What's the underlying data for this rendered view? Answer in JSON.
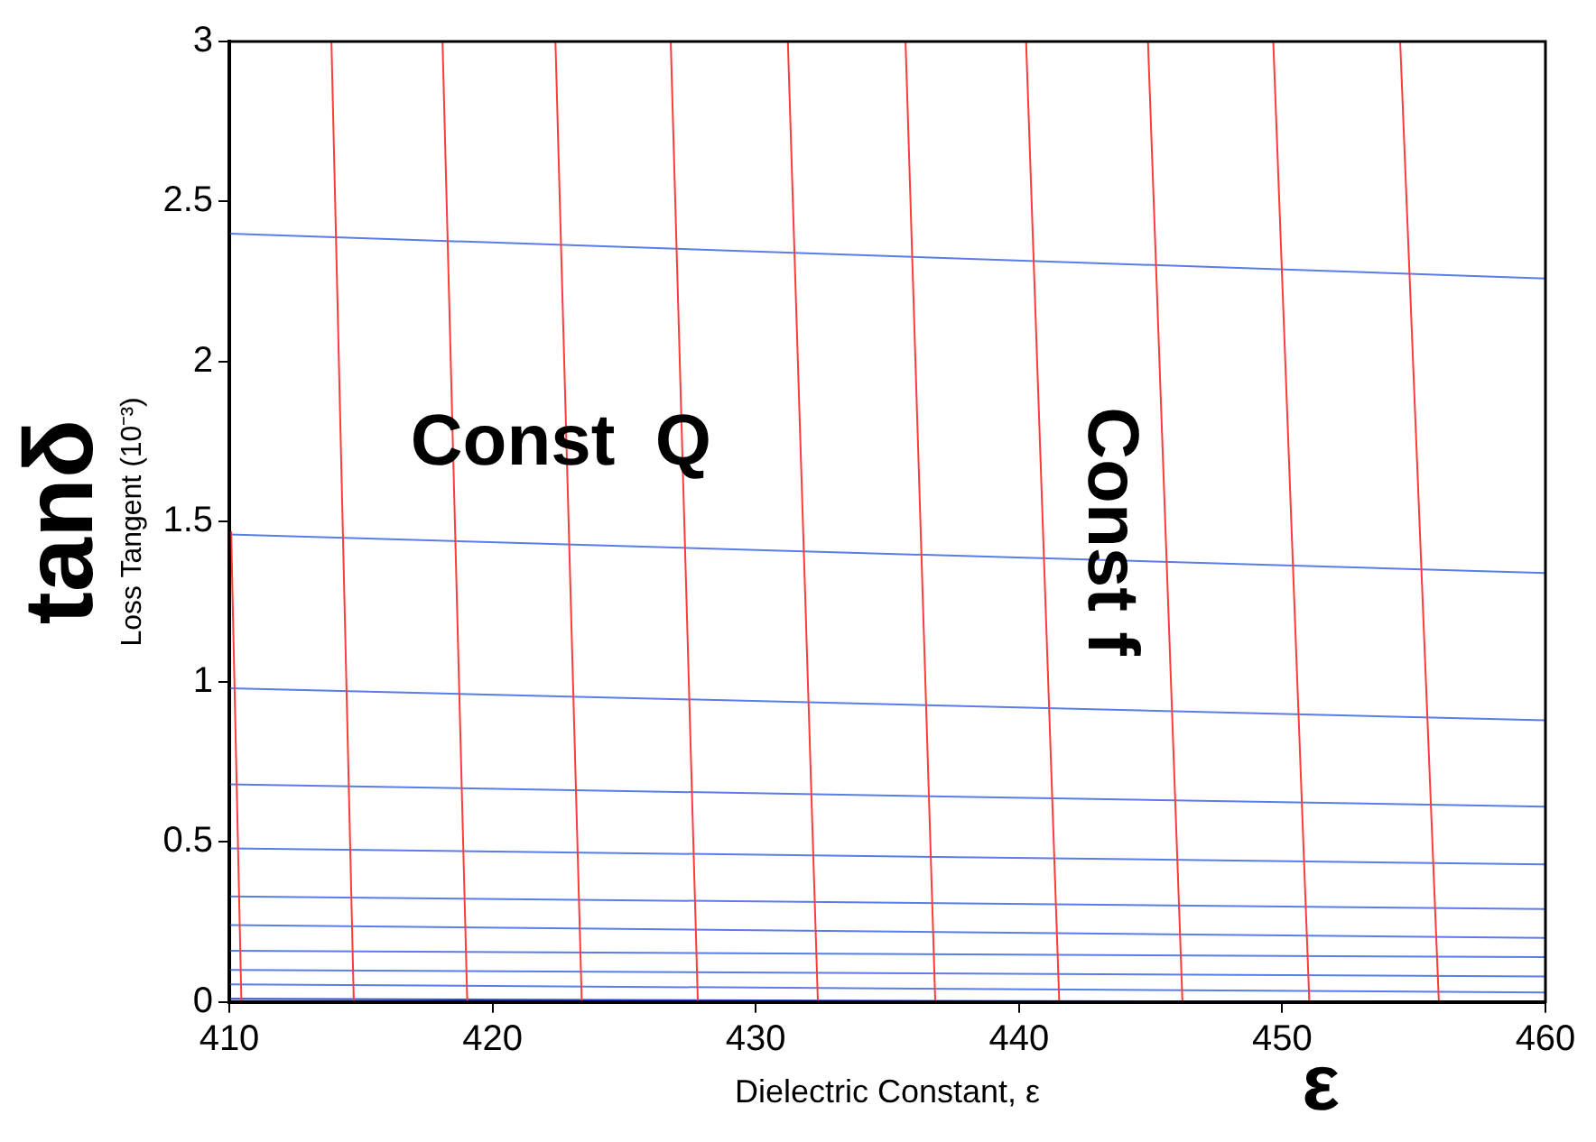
{
  "chart_data": {
    "type": "line",
    "xlabel": "Dielectric Constant, ε",
    "ylabel": "Loss Tangent (10⁻³)",
    "xlim": [
      410,
      460
    ],
    "ylim": [
      0,
      3
    ],
    "xticks": [
      410,
      420,
      430,
      440,
      450,
      460
    ],
    "yticks": [
      0,
      0.5,
      1,
      1.5,
      2,
      2.5,
      3
    ],
    "grid": false,
    "legend": false,
    "marker": "none",
    "line_style": "solid",
    "annotations": [
      "Const  Q",
      "Const f",
      "tanδ",
      "ε"
    ],
    "series": [
      {
        "color": "#ff3b3b",
        "x": [
          410.07,
          410.46
        ],
        "values": [
          1.47,
          0
        ]
      },
      {
        "color": "#ff3b3b",
        "x": [
          413.88,
          414.73
        ],
        "values": [
          3,
          0
        ]
      },
      {
        "color": "#ff3b3b",
        "x": [
          418.1,
          419.04
        ],
        "values": [
          3,
          0
        ]
      },
      {
        "color": "#ff3b3b",
        "x": [
          422.39,
          423.39
        ],
        "values": [
          3,
          0
        ]
      },
      {
        "color": "#ff3b3b",
        "x": [
          426.77,
          427.8
        ],
        "values": [
          3,
          0
        ]
      },
      {
        "color": "#ff3b3b",
        "x": [
          431.22,
          432.36
        ],
        "values": [
          3,
          0
        ]
      },
      {
        "color": "#ff3b3b",
        "x": [
          435.69,
          436.82
        ],
        "values": [
          3,
          0
        ]
      },
      {
        "color": "#ff3b3b",
        "x": [
          440.27,
          441.53
        ],
        "values": [
          3,
          0
        ]
      },
      {
        "color": "#ff3b3b",
        "x": [
          444.9,
          446.21
        ],
        "values": [
          3,
          0
        ]
      },
      {
        "color": "#ff3b3b",
        "x": [
          449.66,
          451.03
        ],
        "values": [
          3,
          0
        ]
      },
      {
        "color": "#ff3b3b",
        "x": [
          454.48,
          455.95
        ],
        "values": [
          3,
          0
        ]
      },
      {
        "color": "#5b7be8",
        "x": [
          410,
          460
        ],
        "values": [
          2.4,
          2.26
        ]
      },
      {
        "color": "#5b7be8",
        "x": [
          410,
          460
        ],
        "values": [
          1.46,
          1.34
        ]
      },
      {
        "color": "#5b7be8",
        "x": [
          410,
          460
        ],
        "values": [
          0.98,
          0.88
        ]
      },
      {
        "color": "#5b7be8",
        "x": [
          410,
          460
        ],
        "values": [
          0.68,
          0.61
        ]
      },
      {
        "color": "#5b7be8",
        "x": [
          410,
          460
        ],
        "values": [
          0.48,
          0.43
        ]
      },
      {
        "color": "#5b7be8",
        "x": [
          410,
          460
        ],
        "values": [
          0.33,
          0.29
        ]
      },
      {
        "color": "#5b7be8",
        "x": [
          410,
          460
        ],
        "values": [
          0.24,
          0.2
        ]
      },
      {
        "color": "#5b7be8",
        "x": [
          410,
          460
        ],
        "values": [
          0.16,
          0.14
        ]
      },
      {
        "color": "#5b7be8",
        "x": [
          410,
          460
        ],
        "values": [
          0.1,
          0.08
        ]
      },
      {
        "color": "#5b7be8",
        "x": [
          410,
          460
        ],
        "values": [
          0.055,
          0.03
        ]
      },
      {
        "color": "#2b4bd0",
        "x": [
          410,
          453.5
        ],
        "values": [
          0.01,
          0
        ]
      }
    ]
  }
}
